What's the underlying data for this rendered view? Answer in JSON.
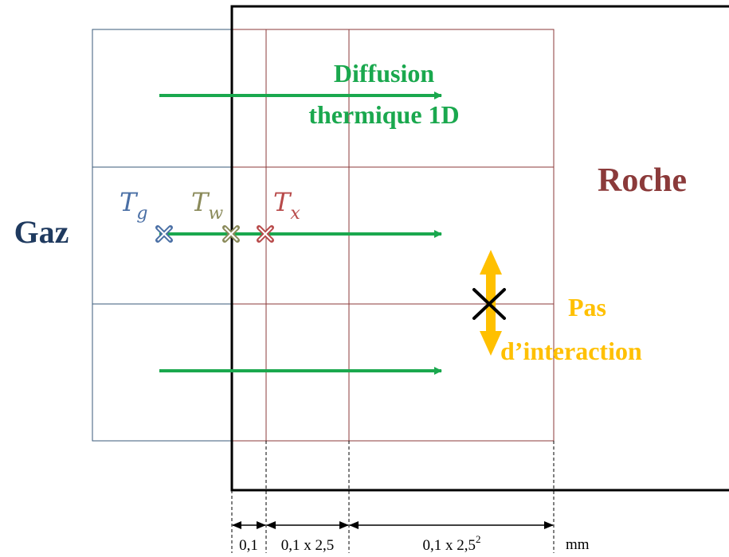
{
  "labels": {
    "gas": "Gaz",
    "rock": "Roche",
    "diffusion_line1": "Diffusion",
    "diffusion_line2": "thermique 1D",
    "no_interaction_line1": "Pas",
    "no_interaction_line2": "d’interaction"
  },
  "temperatures": {
    "gas": {
      "symbol": "T",
      "subscript": "g"
    },
    "wall": {
      "symbol": "T",
      "subscript": "w"
    },
    "rock": {
      "symbol": "T",
      "subscript": "x"
    }
  },
  "dimensions": {
    "d1": "0,1",
    "d2": "0,1 x 2,5",
    "d3_base": "0,1 x 2,5",
    "d3_exp": "2",
    "unit": "mm"
  },
  "colors": {
    "gas_text": "#1f3a5f",
    "gas_grid": "#3a5a7a",
    "rock_text": "#8b3a3a",
    "rock_grid": "#8b3a3a",
    "arrow_green": "#1aa84e",
    "label_green": "#1aa84e",
    "orange": "#ffc000",
    "t_gas": "#4a6fa5",
    "t_wall": "#8a8a5a",
    "t_rock": "#b84a4a"
  }
}
